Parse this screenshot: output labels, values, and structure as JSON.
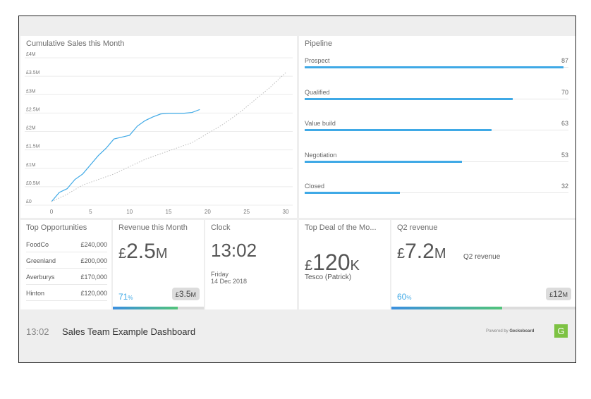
{
  "sales_chart": {
    "title": "Cumulative Sales this Month",
    "y_ticks": [
      "£4M",
      "£3.5M",
      "£3M",
      "£2.5M",
      "£2M",
      "£1.5M",
      "£1M",
      "£0.5M",
      "£0"
    ],
    "x_ticks": [
      "0",
      "5",
      "10",
      "15",
      "20",
      "25",
      "30"
    ]
  },
  "chart_data": {
    "type": "line",
    "title": "Cumulative Sales this Month",
    "xlim": [
      0,
      30
    ],
    "ylim": [
      0,
      4
    ],
    "y_unit": "£M",
    "series": [
      {
        "style": "solid",
        "color": "#3fa9e6",
        "x": [
          0,
          1,
          2,
          3,
          4,
          5,
          6,
          7,
          8,
          9,
          10,
          11,
          12,
          13,
          14,
          15,
          16,
          17,
          18,
          19
        ],
        "y": [
          0,
          0.25,
          0.35,
          0.6,
          0.75,
          1.0,
          1.25,
          1.45,
          1.7,
          1.75,
          1.8,
          2.05,
          2.2,
          2.3,
          2.38,
          2.4,
          2.4,
          2.4,
          2.42,
          2.5
        ]
      },
      {
        "style": "dotted",
        "color": "#bbbbbb",
        "x": [
          0,
          2,
          4,
          6,
          8,
          10,
          12,
          14,
          16,
          18,
          20,
          22,
          24,
          26,
          28,
          30
        ],
        "y": [
          0,
          0.2,
          0.45,
          0.6,
          0.75,
          0.95,
          1.15,
          1.3,
          1.45,
          1.6,
          1.85,
          2.1,
          2.4,
          2.75,
          3.1,
          3.5
        ]
      }
    ]
  },
  "pipeline": {
    "title": "Pipeline",
    "max": 87,
    "stages": [
      {
        "label": "Prospect",
        "value": 87
      },
      {
        "label": "Qualified",
        "value": 70
      },
      {
        "label": "Value build",
        "value": 63
      },
      {
        "label": "Negotiation",
        "value": 53
      },
      {
        "label": "Closed",
        "value": 32
      }
    ]
  },
  "opportunities": {
    "title": "Top Opportunities",
    "rows": [
      {
        "name": "FoodCo",
        "value": "£240,000"
      },
      {
        "name": "Greenland",
        "value": "£200,000"
      },
      {
        "name": "Averburys",
        "value": "£170,000"
      },
      {
        "name": "Hinton",
        "value": "£120,000"
      }
    ]
  },
  "revenue_month": {
    "title": "Revenue this Month",
    "currency": "£",
    "number": "2.5",
    "unit": "M",
    "percent": "71",
    "percent_sign": "%",
    "target_currency": "£",
    "target_number": "3.5",
    "target_unit": "M",
    "progress": 0.71
  },
  "clock": {
    "title": "Clock",
    "time": "13:02",
    "day": "Friday",
    "date": "14 Dec 2018"
  },
  "top_deal": {
    "title": "Top Deal of the Mo...",
    "currency": "£",
    "number": "120",
    "unit": "K",
    "subtitle": "Tesco (Patrick)"
  },
  "q2": {
    "title": "Q2 revenue",
    "currency": "£",
    "number": "7.2",
    "unit": "M",
    "label": "Q2 revenue",
    "percent": "60",
    "percent_sign": "%",
    "target_currency": "£",
    "target_number": "12",
    "target_unit": "M",
    "progress": 0.6
  },
  "footer": {
    "time": "13:02",
    "title": "Sales Team Example Dashboard",
    "powered_prefix": "Powered by",
    "powered_brand": "Geckoboard",
    "logo_letter": "G"
  },
  "colors": {
    "accent": "#3fa9e6",
    "progress_gradient": [
      "#3b8fe0",
      "#52c47a"
    ],
    "percent": "#3fa9e6",
    "logo_bg": "#7dc243"
  }
}
